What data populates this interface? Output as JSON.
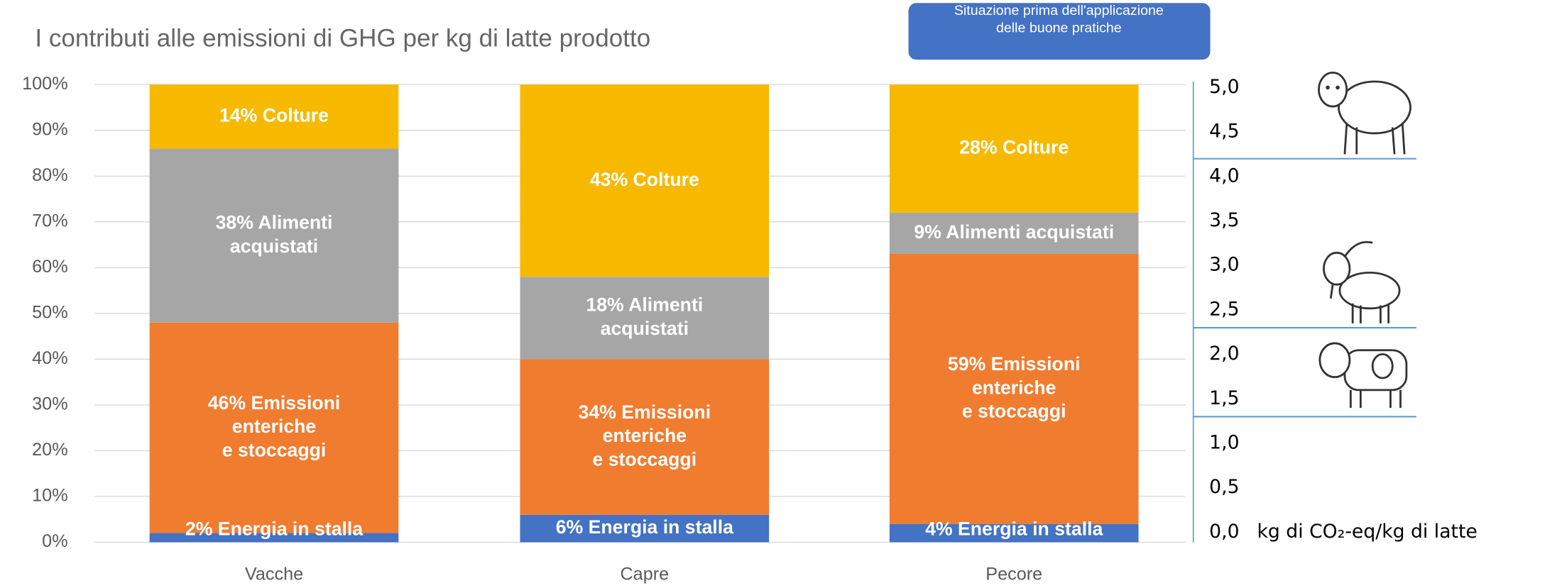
{
  "chart_data": [
    {
      "type": "stacked_bar",
      "title": "I contributi alle emissioni di GHG per kg di latte prodotto",
      "annotation": "Situazione prima dell'applicazione\ndelle buone pratiche",
      "categories": [
        "Vacche",
        "Capre",
        "Pecore"
      ],
      "series": [
        {
          "color": "#4472c4",
          "values": [
            2,
            6,
            4
          ],
          "value_labels": [
            "2% Energia in stalla",
            "6% Energia in stalla",
            "4% Energia in stalla"
          ]
        },
        {
          "color": "#f07c30",
          "values": [
            46,
            34,
            59
          ],
          "value_labels": [
            "46% Emissioni\nenteriche\ne stoccaggi",
            "34% Emissioni\nenteriche\ne stoccaggi",
            "59% Emissioni\nenteriche\ne stoccaggi"
          ]
        },
        {
          "color": "#a6a6a6",
          "values": [
            38,
            18,
            9
          ],
          "value_labels": [
            "38% Alimenti\nacquistati",
            "18% Alimenti\nacquistati",
            "9% Alimenti acquistati"
          ]
        },
        {
          "color": "#f7b900",
          "values": [
            14,
            43,
            28
          ],
          "value_labels": [
            "14% Colture",
            "43% Colture",
            "28% Colture"
          ]
        }
      ],
      "ylim": [
        0,
        100
      ],
      "yticks": [
        {
          "value": 0,
          "label": "0%"
        },
        {
          "value": 10,
          "label": "10%"
        },
        {
          "value": 20,
          "label": "20%"
        },
        {
          "value": 30,
          "label": "30%"
        },
        {
          "value": 40,
          "label": "40%"
        },
        {
          "value": 50,
          "label": "50%"
        },
        {
          "value": 60,
          "label": "60%"
        },
        {
          "value": 70,
          "label": "70%"
        },
        {
          "value": 80,
          "label": "80%"
        },
        {
          "value": 90,
          "label": "90%"
        },
        {
          "value": 100,
          "label": "100%"
        }
      ],
      "grid": true
    },
    {
      "type": "hline",
      "ylabel": "kg di CO₂-eq/kg di latte",
      "values": [
        4.2,
        2.3,
        1.3
      ],
      "color": "#5b9bd5",
      "ylim": [
        0,
        5
      ],
      "yticks": [
        {
          "value": 0,
          "label": "0,0"
        },
        {
          "value": 0.5,
          "label": "0,5"
        },
        {
          "value": 1,
          "label": "1,0"
        },
        {
          "value": 1.5,
          "label": "1,5"
        },
        {
          "value": 2,
          "label": "2,0"
        },
        {
          "value": 2.5,
          "label": "2,5"
        },
        {
          "value": 3,
          "label": "3,0"
        },
        {
          "value": 3.5,
          "label": "3,5"
        },
        {
          "value": 4,
          "label": "4,0"
        },
        {
          "value": 4.5,
          "label": "4,5"
        },
        {
          "value": 5,
          "label": "5,0"
        }
      ]
    }
  ]
}
